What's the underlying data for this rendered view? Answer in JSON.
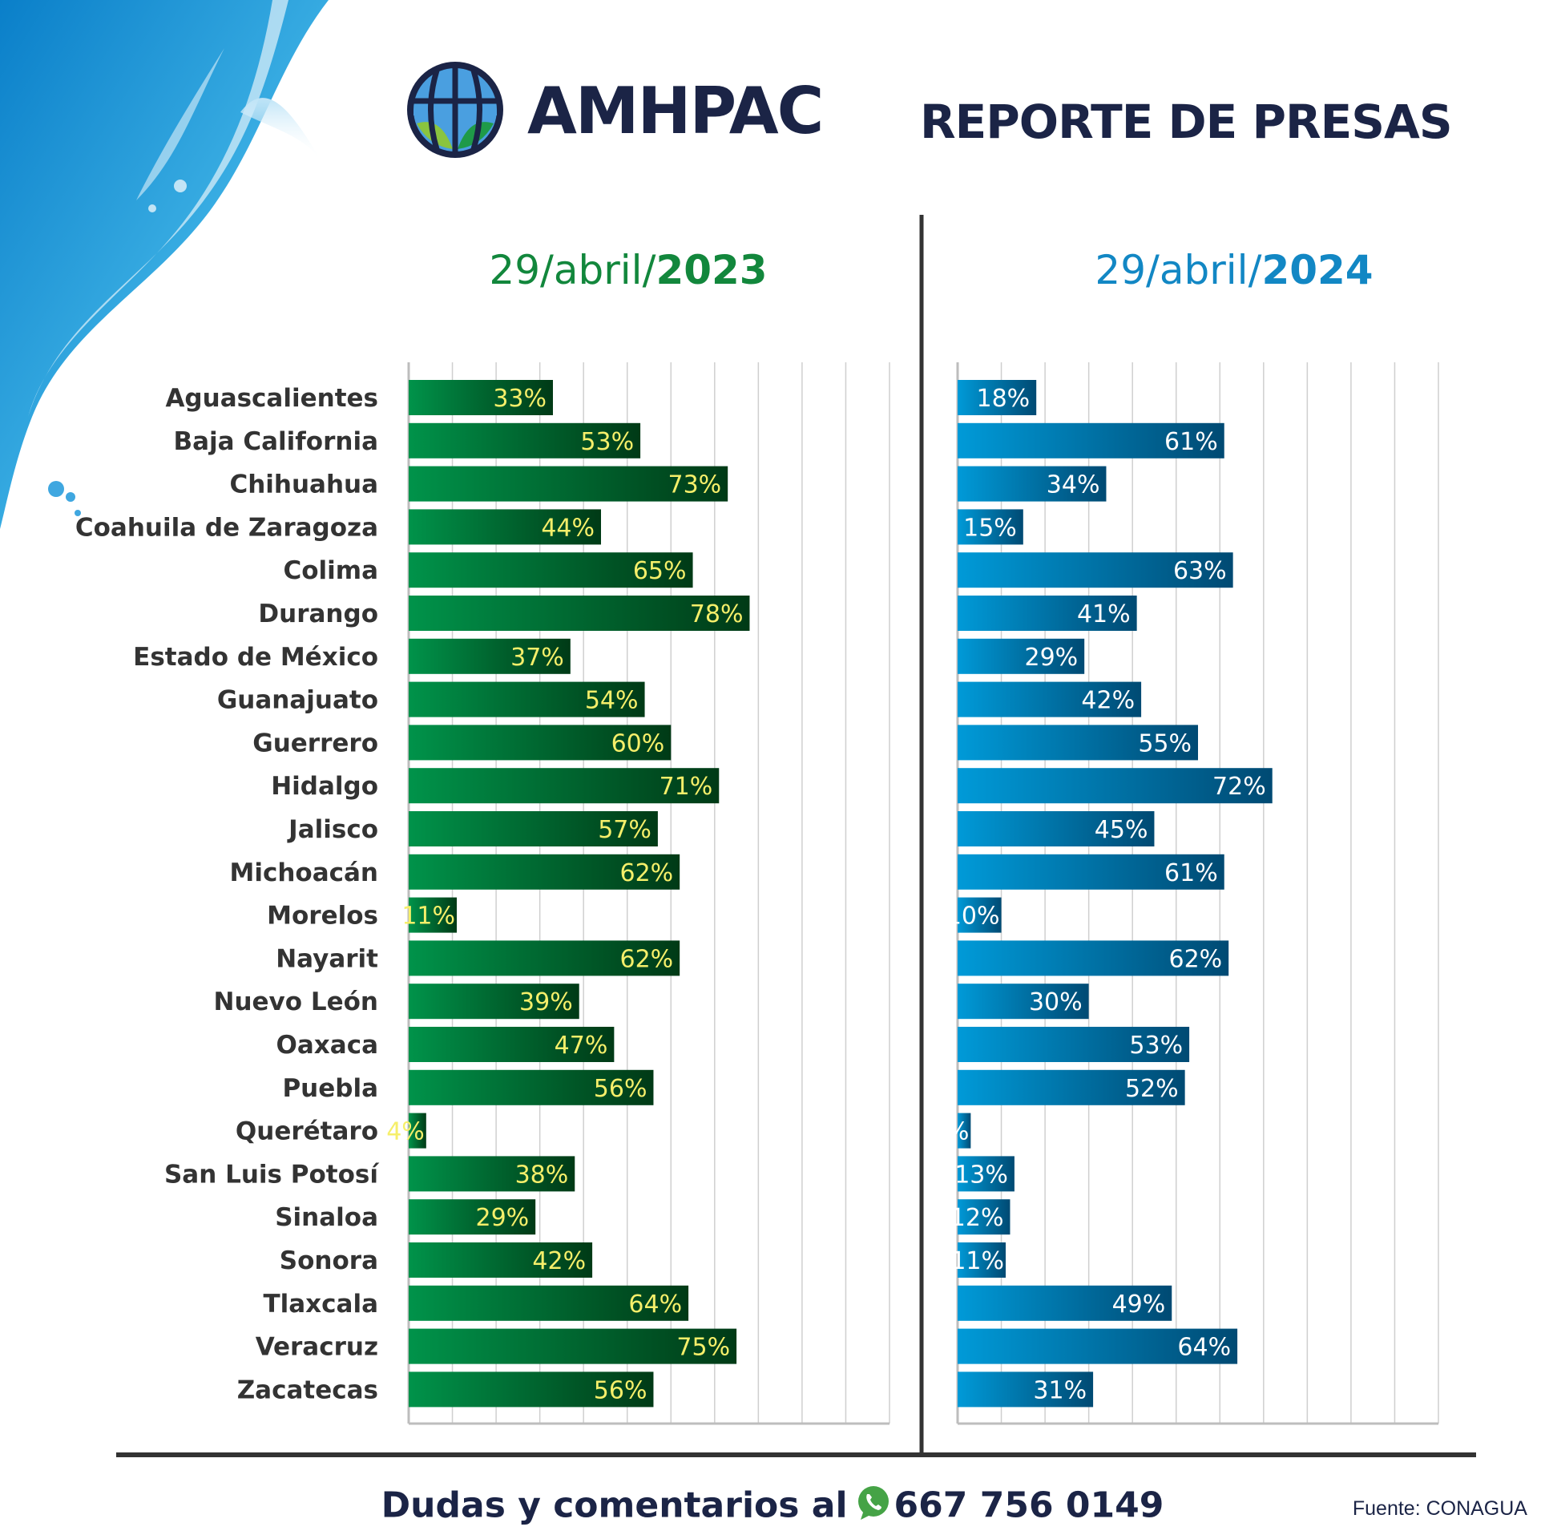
{
  "brand": {
    "name": "AMHPAC"
  },
  "title": "REPORTE DE PRESAS",
  "colors": {
    "green_start": "#00934a",
    "green_end": "#003a16",
    "green_label": "#f6ef6a",
    "blue_start": "#009ad8",
    "blue_end": "#004a73",
    "blue_label": "#ffffff",
    "navy": "#1b2446"
  },
  "footer": {
    "text": "Dudas y comentarios al",
    "phone": "667 756 0149",
    "phone_icon": "whatsapp-icon",
    "source": "Fuente: CONAGUA"
  },
  "chart_data": [
    {
      "type": "bar",
      "orientation": "horizontal",
      "title_prefix": "29/abril/",
      "title_year": "2023",
      "xlim": [
        0,
        110
      ],
      "grid": true,
      "categories": [
        "Aguascalientes",
        "Baja California",
        "Chihuahua",
        "Coahuila de Zaragoza",
        "Colima",
        "Durango",
        "Estado de México",
        "Guanajuato",
        "Guerrero",
        "Hidalgo",
        "Jalisco",
        "Michoacán",
        "Morelos",
        "Nayarit",
        "Nuevo León",
        "Oaxaca",
        "Puebla",
        "Querétaro",
        "San Luis Potosí",
        "Sinaloa",
        "Sonora",
        "Tlaxcala",
        "Veracruz",
        "Zacatecas"
      ],
      "values": [
        33,
        53,
        73,
        44,
        65,
        78,
        37,
        54,
        60,
        71,
        57,
        62,
        11,
        62,
        39,
        47,
        56,
        4,
        38,
        29,
        42,
        64,
        75,
        56
      ],
      "labels": [
        "33%",
        "53%",
        "73%",
        "44%",
        "65%",
        "78%",
        "37%",
        "54%",
        "60%",
        "71%",
        "57%",
        "62%",
        "11%",
        "62%",
        "39%",
        "47%",
        "56%",
        "4%",
        "38%",
        "29%",
        "42%",
        "64%",
        "75%",
        "56%"
      ]
    },
    {
      "type": "bar",
      "orientation": "horizontal",
      "title_prefix": "29/abril/",
      "title_year": "2024",
      "xlim": [
        0,
        110
      ],
      "grid": true,
      "categories": [
        "Aguascalientes",
        "Baja California",
        "Chihuahua",
        "Coahuila de Zaragoza",
        "Colima",
        "Durango",
        "Estado de México",
        "Guanajuato",
        "Guerrero",
        "Hidalgo",
        "Jalisco",
        "Michoacán",
        "Morelos",
        "Nayarit",
        "Nuevo León",
        "Oaxaca",
        "Puebla",
        "Querétaro",
        "San Luis Potosí",
        "Sinaloa",
        "Sonora",
        "Tlaxcala",
        "Veracruz",
        "Zacatecas"
      ],
      "values": [
        18,
        61,
        34,
        15,
        63,
        41,
        29,
        42,
        55,
        72,
        45,
        61,
        10,
        62,
        30,
        53,
        52,
        3,
        13,
        12,
        11,
        49,
        64,
        31
      ],
      "labels": [
        "18%",
        "61%",
        "34%",
        "15%",
        "63%",
        "41%",
        "29%",
        "42%",
        "55%",
        "72%",
        "45%",
        "61%",
        "10%",
        "62%",
        "30%",
        "53%",
        "52%",
        "3%",
        "13%",
        "12%",
        "11%",
        "49%",
        "64%",
        "31%"
      ]
    }
  ]
}
